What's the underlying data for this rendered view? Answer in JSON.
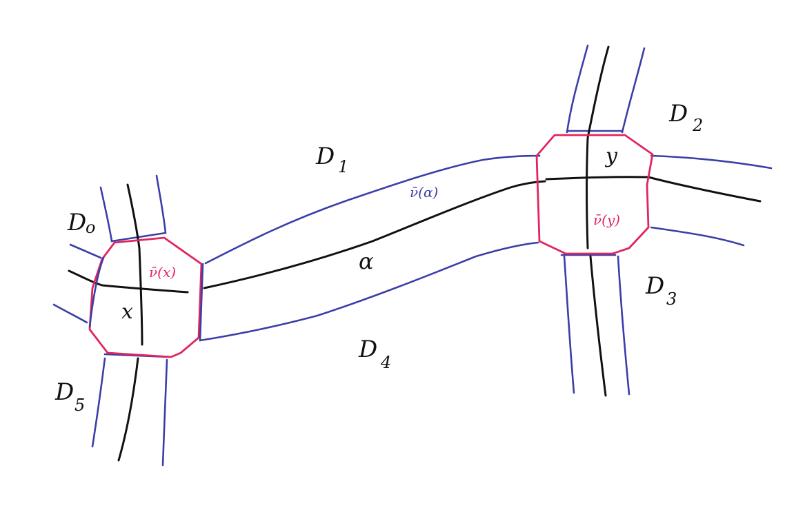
{
  "diagram": {
    "colors": {
      "ink": "#111111",
      "boundary": "#3a3fa8",
      "neighborhood": "#e0265c"
    },
    "regions": {
      "d0": "D",
      "d0_sub": "o",
      "d1": "D",
      "d1_sub": "1",
      "d2": "D",
      "d2_sub": "2",
      "d3": "D",
      "d3_sub": "3",
      "d4": "D",
      "d4_sub": "4",
      "d5": "D",
      "d5_sub": "5"
    },
    "vertices": {
      "x": "x",
      "y": "y"
    },
    "edge": {
      "alpha": "α"
    },
    "neighborhoods": {
      "nu_x": "ν̄(x)",
      "nu_y": "ν̄(y)",
      "nu_alpha": "ν̄(α)"
    }
  }
}
